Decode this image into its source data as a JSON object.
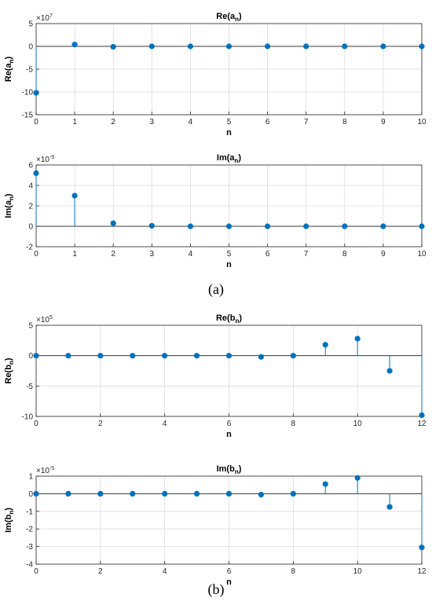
{
  "captions": [
    "(a)",
    "(b)"
  ],
  "chart_data": [
    {
      "type": "stem",
      "title_base": "Re(a",
      "title_sub": "n",
      "title_close": ")",
      "ylabel_base": "Re(a",
      "ylabel_sub": "n",
      "ylabel_close": ")",
      "xlabel": "n",
      "exponent_base": "×10",
      "exponent_power": "7",
      "xlim": [
        0,
        10
      ],
      "ylim": [
        -15,
        5
      ],
      "xticks": [
        0,
        1,
        2,
        3,
        4,
        5,
        6,
        7,
        8,
        9,
        10
      ],
      "yticks": [
        -15,
        -10,
        -5,
        0,
        5
      ],
      "grid": true,
      "x": [
        0,
        1,
        2,
        3,
        4,
        5,
        6,
        7,
        8,
        9,
        10
      ],
      "y": [
        -10.2,
        0.4,
        -0.1,
        0,
        0,
        0,
        0,
        0,
        0,
        0,
        0
      ]
    },
    {
      "type": "stem",
      "title_base": "Im(a",
      "title_sub": "n",
      "title_close": ")",
      "ylabel_base": "Im(a",
      "ylabel_sub": "n",
      "ylabel_close": ")",
      "xlabel": "n",
      "exponent_base": "×10",
      "exponent_power": "-9",
      "xlim": [
        0,
        10
      ],
      "ylim": [
        -2,
        6
      ],
      "xticks": [
        0,
        1,
        2,
        3,
        4,
        5,
        6,
        7,
        8,
        9,
        10
      ],
      "yticks": [
        -2,
        0,
        2,
        4,
        6
      ],
      "grid": true,
      "x": [
        0,
        1,
        2,
        3,
        4,
        5,
        6,
        7,
        8,
        9,
        10
      ],
      "y": [
        5.2,
        3.0,
        0.3,
        0.05,
        0,
        0,
        0,
        0,
        0,
        0,
        0
      ]
    },
    {
      "type": "stem",
      "title_base": "Re(b",
      "title_sub": "n",
      "title_close": ")",
      "ylabel_base": "Re(b",
      "ylabel_sub": "n",
      "ylabel_close": ")",
      "xlabel": "n",
      "exponent_base": "×10",
      "exponent_power": "5",
      "xlim": [
        0,
        12
      ],
      "ylim": [
        -10,
        5
      ],
      "xticks": [
        0,
        2,
        4,
        6,
        8,
        10,
        12
      ],
      "yticks": [
        -10,
        -5,
        0,
        5
      ],
      "grid": true,
      "x": [
        0,
        1,
        2,
        3,
        4,
        5,
        6,
        7,
        8,
        9,
        10,
        11,
        12
      ],
      "y": [
        0,
        0,
        0,
        0,
        0,
        0,
        0,
        -0.2,
        0,
        1.8,
        2.8,
        -2.5,
        -9.8
      ]
    },
    {
      "type": "stem",
      "title_base": "Im(b",
      "title_sub": "n",
      "title_close": ")",
      "ylabel_base": "Im(b",
      "ylabel_sub": "n",
      "ylabel_close": ")",
      "xlabel": "n",
      "exponent_base": "×10",
      "exponent_power": "-5",
      "xlim": [
        0,
        12
      ],
      "ylim": [
        -4,
        1
      ],
      "xticks": [
        0,
        2,
        4,
        6,
        8,
        10,
        12
      ],
      "yticks": [
        -4,
        -3,
        -2,
        -1,
        0,
        1
      ],
      "grid": true,
      "x": [
        0,
        1,
        2,
        3,
        4,
        5,
        6,
        7,
        8,
        9,
        10,
        11,
        12
      ],
      "y": [
        0,
        0,
        0,
        0,
        0,
        0,
        0,
        -0.05,
        0,
        0.55,
        0.9,
        -0.75,
        -3.05
      ]
    }
  ],
  "colors": {
    "stem": "#0072BD",
    "axis": "#262626",
    "grid": "#dcdcdc",
    "zero_line": "#3a3a3a"
  }
}
